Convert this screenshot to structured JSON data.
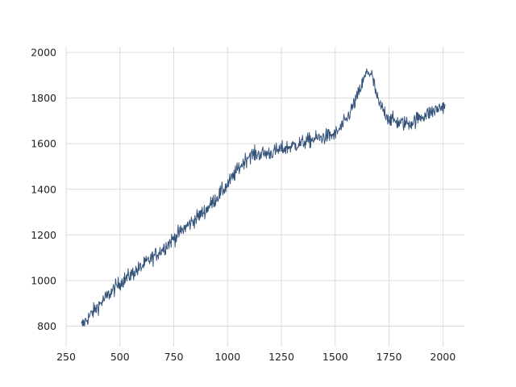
{
  "chart_data": {
    "type": "line",
    "title": "",
    "xlabel": "",
    "ylabel": "",
    "xlim": [
      250,
      2100
    ],
    "ylim": [
      710,
      2025
    ],
    "x_ticks": [
      250,
      500,
      750,
      1000,
      1250,
      1500,
      1750,
      2000
    ],
    "y_ticks": [
      800,
      1000,
      1200,
      1400,
      1600,
      1800,
      2000
    ],
    "grid": true,
    "legend": "none",
    "line_color": "#34527a",
    "series": [
      {
        "x_range": [
          320,
          2010
        ],
        "x_step": 2,
        "noise_amplitude": 30,
        "trend_knots": [
          {
            "x": 320,
            "y": 800
          },
          {
            "x": 400,
            "y": 890
          },
          {
            "x": 500,
            "y": 990
          },
          {
            "x": 600,
            "y": 1060
          },
          {
            "x": 700,
            "y": 1140
          },
          {
            "x": 800,
            "y": 1230
          },
          {
            "x": 900,
            "y": 1310
          },
          {
            "x": 1000,
            "y": 1420
          },
          {
            "x": 1050,
            "y": 1490
          },
          {
            "x": 1100,
            "y": 1550
          },
          {
            "x": 1200,
            "y": 1560
          },
          {
            "x": 1300,
            "y": 1590
          },
          {
            "x": 1400,
            "y": 1620
          },
          {
            "x": 1500,
            "y": 1640
          },
          {
            "x": 1550,
            "y": 1700
          },
          {
            "x": 1600,
            "y": 1800
          },
          {
            "x": 1650,
            "y": 1920
          },
          {
            "x": 1670,
            "y": 1900
          },
          {
            "x": 1700,
            "y": 1780
          },
          {
            "x": 1750,
            "y": 1710
          },
          {
            "x": 1800,
            "y": 1690
          },
          {
            "x": 1850,
            "y": 1690
          },
          {
            "x": 1900,
            "y": 1720
          },
          {
            "x": 1950,
            "y": 1740
          },
          {
            "x": 2010,
            "y": 1770
          }
        ]
      }
    ]
  }
}
